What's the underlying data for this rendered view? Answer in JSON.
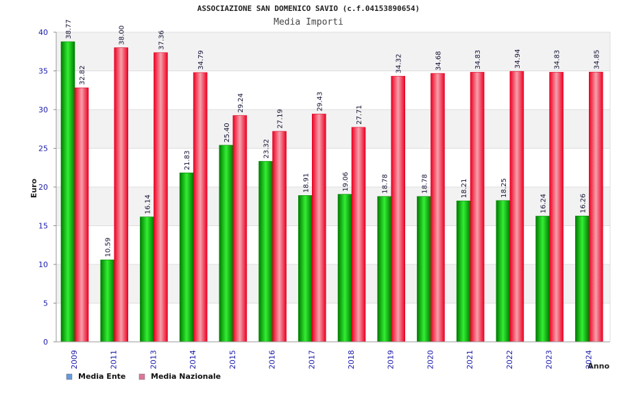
{
  "chart_data": {
    "type": "bar",
    "title": "ASSOCIAZIONE SAN DOMENICO SAVIO (c.f.04153890654)",
    "subtitle": "Media Importi",
    "xlabel": "Anno",
    "ylabel": "Euro",
    "ylim": [
      0,
      40
    ],
    "yticks": [
      0,
      5,
      10,
      15,
      20,
      25,
      30,
      35,
      40
    ],
    "grid": true,
    "legend_position": "bottom-left",
    "categories": [
      "2009",
      "2011",
      "2013",
      "2014",
      "2015",
      "2016",
      "2017",
      "2018",
      "2019",
      "2020",
      "2021",
      "2022",
      "2023",
      "2024"
    ],
    "series": [
      {
        "name": "Media Ente",
        "legend_color": "#6699dd",
        "bar_color": "#00bb00",
        "values": [
          38.77,
          10.59,
          16.14,
          21.83,
          25.4,
          23.32,
          18.91,
          19.06,
          18.78,
          18.78,
          18.21,
          18.25,
          16.24,
          16.26
        ],
        "labels": [
          "38.77",
          "10.59",
          "16.14",
          "21.83",
          "25.40",
          "23.32",
          "18.91",
          "19.06",
          "18.78",
          "18.78",
          "18.21",
          "18.25",
          "16.24",
          "16.26"
        ]
      },
      {
        "name": "Media Nazionale",
        "legend_color": "#dd7799",
        "bar_color": "#ee1133",
        "values": [
          32.82,
          38.0,
          37.36,
          34.79,
          29.24,
          27.19,
          29.43,
          27.71,
          34.32,
          34.68,
          34.83,
          34.94,
          34.83,
          34.85
        ],
        "labels": [
          "32.82",
          "38.00",
          "37.36",
          "34.79",
          "29.24",
          "27.19",
          "29.43",
          "27.71",
          "34.32",
          "34.68",
          "34.83",
          "34.94",
          "34.83",
          "34.85"
        ]
      }
    ]
  }
}
